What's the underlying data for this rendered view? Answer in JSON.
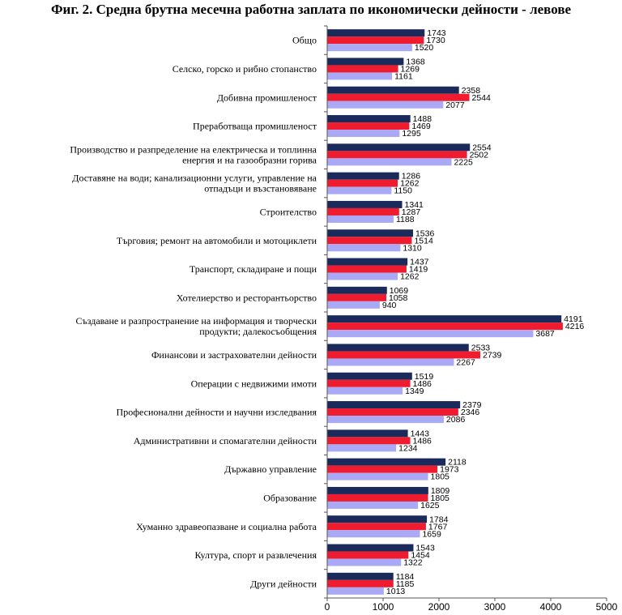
{
  "chart_data": {
    "type": "bar",
    "orientation": "horizontal",
    "title": "Фиг. 2. Средна брутна месечна работна заплата по икономически дейности - левове",
    "xlabel": "",
    "ylabel": "",
    "xlim": [
      0,
      5000
    ],
    "xticks": [
      0,
      1000,
      2000,
      3000,
      4000,
      5000
    ],
    "grid": false,
    "legend": "none",
    "categories": [
      [
        "Общо"
      ],
      [
        "Селско, горско и рибно стопанство"
      ],
      [
        "Добивна промишленост"
      ],
      [
        "Преработваща промишленост"
      ],
      [
        "Производство и разпределение  на електрическа и топлинна",
        "енергия и на газообразни горива"
      ],
      [
        "Доставяне на води; канализационни услуги,  управление на",
        "отпадъци и възстановяване"
      ],
      [
        "Строителство"
      ],
      [
        "Търговия; ремонт на автомобили и мотоциклети"
      ],
      [
        "Транспорт, складиране и пощи"
      ],
      [
        "Хотелиерство  и ресторантьорство"
      ],
      [
        "Създаване и разпространение  на информация и творчески",
        "продукти; далекосъобщения"
      ],
      [
        "Финансови и застрахователни дейности"
      ],
      [
        "Операции с недвижими имоти"
      ],
      [
        "Професионални дейности и научни изследвания"
      ],
      [
        "Административни  и спомагателни дейности"
      ],
      [
        "Държавно управление"
      ],
      [
        "Образование"
      ],
      [
        "Хуманно здравеопазване и социална работа"
      ],
      [
        "Култура,  спорт и развлечения"
      ],
      [
        "Други дейности"
      ]
    ],
    "series": [
      {
        "color": "#1a2a5a",
        "values": [
          1743,
          1368,
          2358,
          1488,
          2554,
          1286,
          1341,
          1536,
          1437,
          1069,
          4191,
          2533,
          1519,
          2379,
          1443,
          2118,
          1809,
          1784,
          1543,
          1184
        ]
      },
      {
        "color": "#ee1c2e",
        "values": [
          1730,
          1269,
          2544,
          1469,
          2502,
          1262,
          1287,
          1514,
          1419,
          1058,
          4216,
          2739,
          1486,
          2346,
          1486,
          1973,
          1805,
          1767,
          1454,
          1185
        ]
      },
      {
        "color": "#a9a9f5",
        "values": [
          1520,
          1161,
          2077,
          1295,
          2225,
          1150,
          1188,
          1310,
          1262,
          940,
          3687,
          2267,
          1349,
          2086,
          1234,
          1805,
          1625,
          1659,
          1322,
          1013
        ]
      }
    ]
  }
}
